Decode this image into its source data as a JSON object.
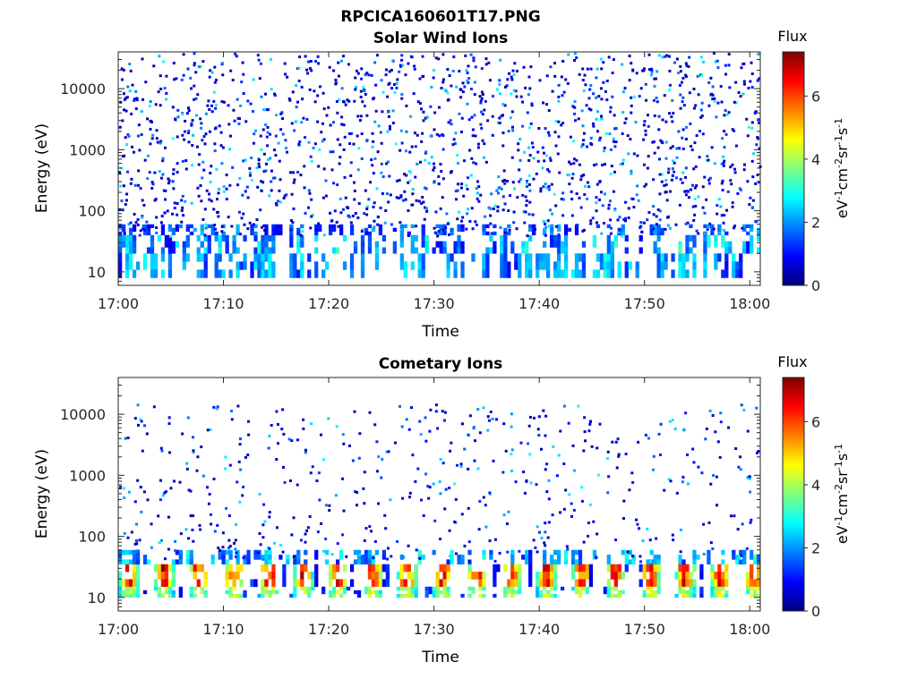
{
  "figure": {
    "title": "RPCICA160601T17.PNG"
  },
  "colormap_stops": [
    "#00007f",
    "#0000ff",
    "#007fff",
    "#00ffff",
    "#7fff7f",
    "#ffff00",
    "#ff7f00",
    "#ff0000",
    "#7f0000"
  ],
  "chart_data": [
    {
      "type": "heatmap",
      "title": "Solar Wind Ions",
      "xlabel": "Time",
      "ylabel": "Energy (eV)",
      "x_start": "17:00",
      "x_end": "18:01",
      "xticks": [
        "17:00",
        "17:10",
        "17:20",
        "17:30",
        "17:40",
        "17:50",
        "18:00"
      ],
      "yscale": "log",
      "ylim": [
        6,
        40000
      ],
      "yticks": [
        {
          "value": 10,
          "label": "10"
        },
        {
          "value": 100,
          "label": "100"
        },
        {
          "value": 1000,
          "label": "1000"
        },
        {
          "value": 10000,
          "label": "10000"
        }
      ],
      "colorbar": {
        "title": "Flux",
        "unit_label": "eV-1cm-2sr-1s-1",
        "range": [
          0,
          7.4
        ],
        "ticks": [
          0,
          2,
          4,
          6
        ]
      },
      "bands": [
        {
          "name": "band_8_20eV",
          "emin": 8,
          "emax": 20,
          "min_level": 1.0,
          "max_level": 2.8,
          "periodic": false,
          "level": 1.5
        },
        {
          "name": "band_20_40eV",
          "emin": 20,
          "emax": 40,
          "min_level": 0.8,
          "max_level": 3.0,
          "periodic": false,
          "level": 1.4
        },
        {
          "name": "band_40_60eV",
          "emin": 40,
          "emax": 60,
          "min_level": 0.8,
          "max_level": 2.2,
          "periodic": false,
          "level": 1.2
        }
      ],
      "scatter_energy": [
        40,
        40000
      ],
      "scatter_level": [
        0.4,
        3.0
      ]
    },
    {
      "type": "heatmap",
      "title": "Cometary Ions",
      "xlabel": "Time",
      "ylabel": "Energy (eV)",
      "x_start": "17:00",
      "x_end": "18:01",
      "xticks": [
        "17:00",
        "17:10",
        "17:20",
        "17:30",
        "17:40",
        "17:50",
        "18:00"
      ],
      "yscale": "log",
      "ylim": [
        6,
        40000
      ],
      "yticks": [
        {
          "value": 10,
          "label": "10"
        },
        {
          "value": 100,
          "label": "100"
        },
        {
          "value": 1000,
          "label": "1000"
        },
        {
          "value": 10000,
          "label": "10000"
        }
      ],
      "colorbar": {
        "title": "Flux",
        "unit_label": "eV-1cm-2sr-1s-1",
        "range": [
          0,
          7.4
        ],
        "ticks": [
          0,
          2,
          4,
          6
        ]
      },
      "bands": [
        {
          "name": "band_15_35eV",
          "emin": 15,
          "emax": 35,
          "min_level": 3.0,
          "max_level": 6.8,
          "periodic": true,
          "level": 5.5
        },
        {
          "name": "band_10_15eV",
          "emin": 10,
          "emax": 15,
          "min_level": 2.5,
          "max_level": 4.5,
          "periodic": true,
          "level": 3.5
        },
        {
          "name": "band_35_60eV",
          "emin": 35,
          "emax": 60,
          "min_level": 1.0,
          "max_level": 3.0,
          "periodic": false,
          "level": 2.0
        }
      ],
      "burst_period_minutes": 3.3,
      "scatter_energy": [
        40,
        15000
      ],
      "scatter_level": [
        0.4,
        2.8
      ]
    }
  ]
}
